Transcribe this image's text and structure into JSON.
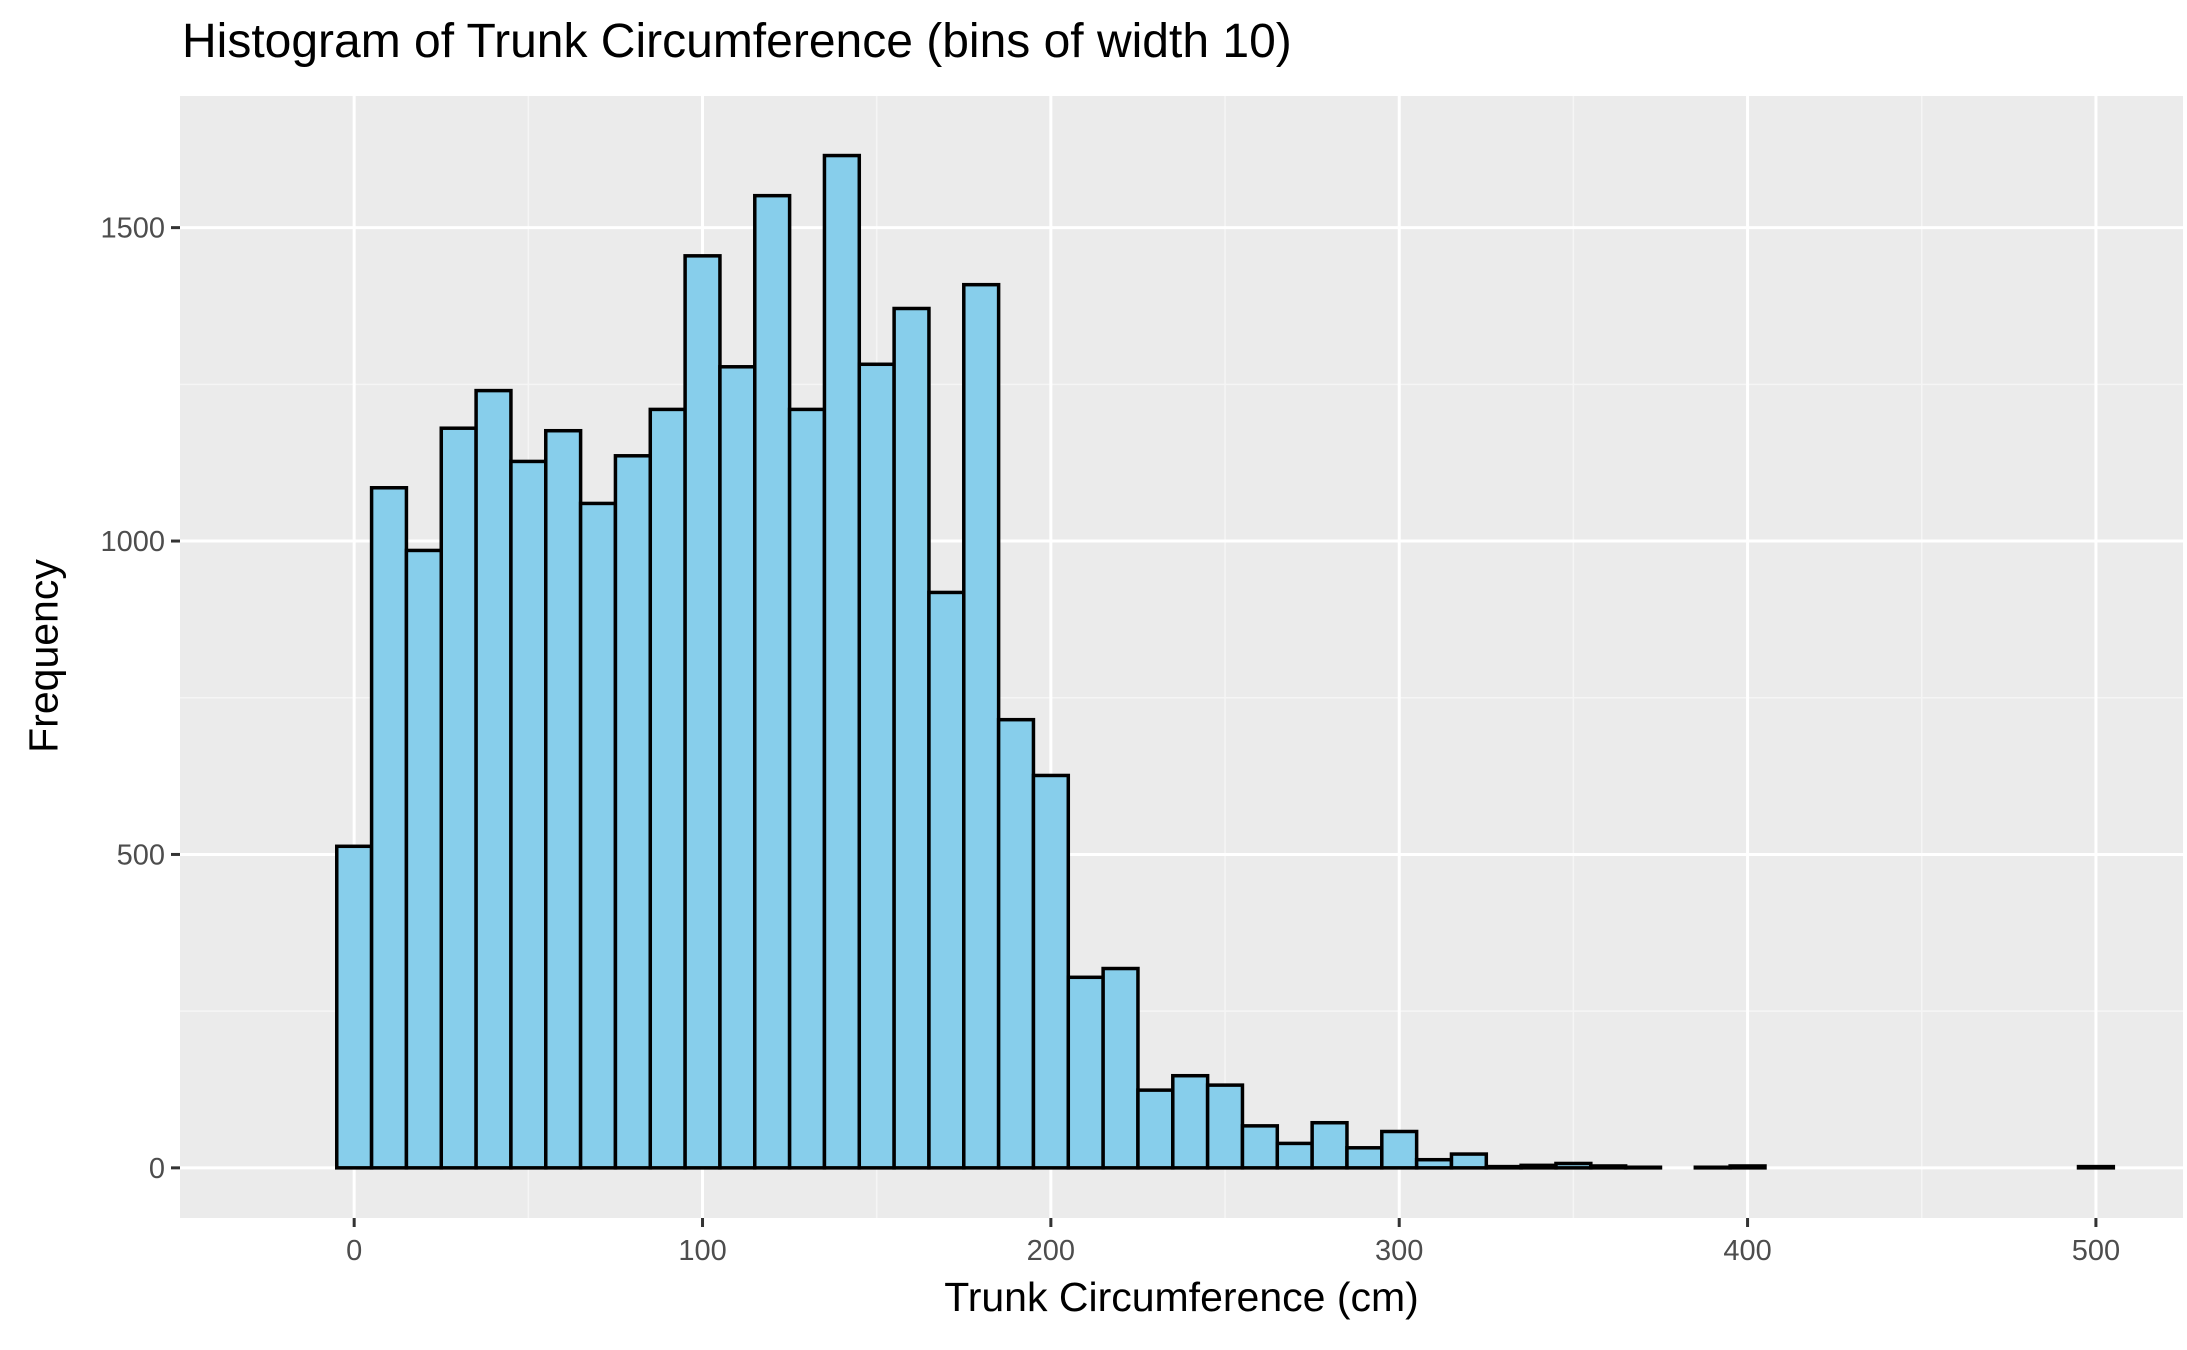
{
  "title": "Histogram of Trunk Circumference (bins of width 10)",
  "chart_data": {
    "type": "bar",
    "title": "Histogram of Trunk Circumference (bins of width 10)",
    "xlabel": "Trunk Circumference (cm)",
    "ylabel": "Frequency",
    "bin_width": 10,
    "bin_centers": [
      0,
      10,
      20,
      30,
      40,
      50,
      60,
      70,
      80,
      90,
      100,
      110,
      120,
      130,
      140,
      150,
      160,
      170,
      180,
      190,
      200,
      210,
      220,
      230,
      240,
      250,
      260,
      270,
      280,
      290,
      300,
      310,
      320,
      330,
      340,
      350,
      360,
      370,
      380,
      390,
      400,
      410,
      420,
      430,
      440,
      450,
      460,
      470,
      480,
      490,
      500
    ],
    "values": [
      513,
      1085,
      985,
      1180,
      1240,
      1127,
      1176,
      1060,
      1136,
      1210,
      1455,
      1278,
      1551,
      1210,
      1615,
      1282,
      1371,
      918,
      1409,
      715,
      626,
      304,
      318,
      124,
      147,
      132,
      67,
      39,
      72,
      32,
      58,
      13,
      22,
      2,
      4,
      7,
      3,
      1,
      0,
      1,
      3,
      0,
      0,
      0,
      0,
      0,
      0,
      0,
      0,
      0,
      2
    ],
    "xlim": [
      -50,
      525
    ],
    "ylim": [
      -80,
      1710
    ],
    "x_ticks": [
      "0",
      "100",
      "200",
      "300",
      "400",
      "500"
    ],
    "x_tick_values": [
      0,
      100,
      200,
      300,
      400,
      500
    ],
    "y_ticks": [
      "0",
      "500",
      "1000",
      "1500"
    ],
    "y_tick_values": [
      0,
      500,
      1000,
      1500
    ],
    "grid": true,
    "colors": {
      "panel_background": "#ebebeb",
      "grid_major": "#ffffff",
      "grid_minor": "#f5f5f5",
      "bar_fill": "#87ceeb",
      "bar_outline": "#000000",
      "tick_text": "#4d4d4d",
      "tick_mark": "#333333"
    }
  }
}
